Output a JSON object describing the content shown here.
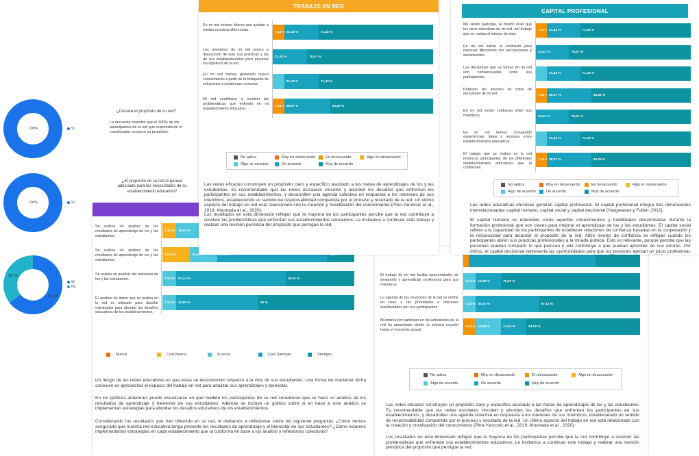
{
  "colors": {
    "trabajo_header": "#f7a823",
    "capital_header": "#17a2b8",
    "purple_header": "#7b3fd0",
    "no_aplica": "#555555",
    "muy_desacuerdo": "#f26d12",
    "en_desacuerdo": "#f59300",
    "algo_desacuerdo": "#f7b21b",
    "algo_acuerdo": "#4fc8dd",
    "de_acuerdo": "#1aa3bf",
    "muy_acuerdo": "#0e93a2",
    "donut_blue": "#1a73e8",
    "donut_light": "#22b2c9"
  },
  "legend_agreement": {
    "no_aplica": "No aplica",
    "muy_desacuerdo": "Muy en desacuerdo",
    "en_desacuerdo": "En desacuerdo",
    "algo_desacuerdo": "Algo en desacuerdo",
    "algo_acuerdo": "Algo de acuerdo",
    "de_acuerdo": "De acuerdo",
    "muy_acuerdo": "Muy de acuerdo"
  },
  "legend_frequency": {
    "nunca": "Nunca",
    "casi_nunca": "Casi Nunca",
    "a_veces": "A veces",
    "casi_siempre": "Casi Siempre",
    "siempre": "Siempre"
  },
  "left_page": {
    "q1": {
      "question": "¿Conoce el propósito de su red?",
      "text": "La encuesta muestra que el 100% de los participantes de la red que respondieron el cuestionario conocen su propósito.",
      "donut_label": "100%",
      "legend": "Sí"
    },
    "q2": {
      "question": "¿El propósito de su red le parece adecuado para las necesidades de su establecimiento educativo?",
      "donut_label": "100%",
      "legend": "Sí"
    },
    "q3": {
      "label_a": "35,7%",
      "label_b": "64,3%",
      "legend_si": "Sí",
      "legend_no": "No"
    }
  },
  "trabajo_en_red": {
    "title": "TRABAJO EN RED",
    "rows": [
      {
        "label": "En mi red existen líderes que ayudan a mediar nuestras diferencias.",
        "segs": [
          [
            "ed",
            7.14,
            "7,14 %"
          ],
          [
            "da",
            21.43,
            "21,43 %"
          ],
          [
            "ma",
            71.43,
            "71,43 %"
          ]
        ]
      },
      {
        "label": "Los miembros de mi red ponen a disposición de esta sus prácticas y las de sus establecimientos para alcanzar los objetivos de la red.",
        "segs": [
          [
            "da",
            21.43,
            "21,43 %"
          ],
          [
            "ma",
            78.57,
            "78,57 %"
          ]
        ]
      },
      {
        "label": "En mi red hemos generado nuevo conocimiento a partir de la búsqueda de soluciones a problemas comunes.",
        "segs": [
          [
            "aa",
            7.14,
            ""
          ],
          [
            "da",
            21.43,
            "21,43 %"
          ],
          [
            "ma",
            71.43,
            "71,43 %"
          ]
        ]
      },
      {
        "label": "Mi red contribuye a resolver las problemáticas que enfrento en mi establecimiento educativo.",
        "segs": [
          [
            "ed",
            7.14,
            "7,14 %"
          ],
          [
            "da",
            28.57,
            "28,57 %"
          ],
          [
            "ma",
            64.29,
            "64,29 %"
          ]
        ]
      }
    ],
    "para1": "Las redes eficaces construyen un propósito claro y específico asociado a las metas de aprendizajes de los y las estudiantes. Es recomendable que las redes escolares vinculen y aborden los desafíos que enfrentan los participantes en sus establecimientos, y desarrollen una agenda colectiva en respuesta a los intereses de sus miembros, estableciendo un sentido de responsabilidad compartida por el proceso y resultado de la red. Un último aspecto del trabajo en red está relacionado con la creación y movilización del conocimiento (Pino-Yancovic et al., 2019; Ahumada et al., 2020).",
    "para2": "Los resultados en esta dimensión reflejan que la mayoría de los participantes percibe que la red contribuye a resolver las problemáticas que enfrentan sus establecimientos educativos. Le invitamos a continuar este trabajo y realizar una revisión periódica del propósito que persigue la red."
  },
  "capital_profesional": {
    "title": "CAPITAL PROFESIONAL",
    "rows": [
      {
        "label": "Me siento partícipe, al mismo nivel que los otros miembros de mi red, del trabajo que se realiza al interior de ésta.",
        "segs": [
          [
            "ed",
            7.14,
            "7,14 %"
          ],
          [
            "da",
            21.43,
            "21,43 %"
          ],
          [
            "ma",
            71.43,
            "71,43 %"
          ]
        ]
      },
      {
        "label": "En mi red siento la confianza para expresar libremente mis percepciones y desacuerdos.",
        "segs": [
          [
            "da",
            21.43,
            "21,43 %"
          ],
          [
            "ma",
            78.57,
            "78,57 %"
          ]
        ]
      },
      {
        "label": "Las decisiones que se toman en mi red son consensuadas entre sus participantes.",
        "segs": [
          [
            "aa",
            7.14,
            ""
          ],
          [
            "da",
            21.43,
            "21,43 %"
          ],
          [
            "ma",
            71.43,
            "71,43 %"
          ]
        ]
      },
      {
        "label": "Participo del proceso de toma de decisiones de mi red.",
        "segs": [
          [
            "ed",
            7.14,
            "7,14 %"
          ],
          [
            "da",
            28.57,
            "28,57 %"
          ],
          [
            "ma",
            64.29,
            "64,29 %"
          ]
        ]
      },
      {
        "label": "En mi red existe confianza entre sus miembros.",
        "segs": [
          [
            "da",
            21.43,
            "21,43 %"
          ],
          [
            "ma",
            78.57,
            "78,57 %"
          ]
        ]
      },
      {
        "label": "En mi red hemos compartido experiencias, ideas o recursos entre establecimientos educativos.",
        "segs": [
          [
            "aa",
            7.14,
            ""
          ],
          [
            "da",
            21.43,
            "21,43 %"
          ],
          [
            "ma",
            71.43,
            "71,43 %"
          ]
        ]
      },
      {
        "label": "El trabajo que se realiza en la red involucra participantes de los diferentes establecimientos educativos que la conforman.",
        "segs": [
          [
            "ed",
            7.14,
            "7,14 %"
          ],
          [
            "da",
            28.57,
            "28,57 %"
          ],
          [
            "ma",
            64.29,
            "64,29 %"
          ]
        ]
      }
    ],
    "para1": "Las redes educativas efectivas generan capital profesional. El capital profesional integra tres dimensiones interrelacionadas: capital humano, capital social y capital decisional (Hargreaves y Fullan, 2012).",
    "para2": "El capital humano es entendido como aquellos conocimientos y habilidades desarrolladas durante la formación profesional que son claves para mejorar el aprendizaje de los y las estudiantes. El capital social refiere a la capacidad de los participantes de establecer relaciones de confianza basadas en la cooperación y la reciprocidad para alcanzar el propósito de la red. Altos niveles de confianza se reflejan cuando los participantes abren sus prácticas profesionales a la mirada pública. Esto es relevante, porque permite que las personas puedan compartir lo que piensan y ello contribuye a que puedan aprender de sus errores. Por último, el capital decisional representa las oportunidades para que los docentes ejerzan un juicio profesional, tengan agencia y se les confíe como profesionales en su propia área (Pino-Yancovic et al., 2019)."
  },
  "datos": {
    "rows": [
      {
        "label": "Se realiza un análisis de los resultados de aprendizaje de los y las estudiantes.",
        "segs": [
          [
            "casin",
            7.14,
            "7,14 %"
          ],
          [
            "aveces",
            28.57,
            "28,57 %"
          ]
        ]
      },
      {
        "label": "Se realiza un análisis de los resultados de aprendizaje de los y las estudiantes.",
        "segs": [
          [
            "casin",
            14.29,
            "14,29 %"
          ],
          [
            "aveces",
            14.29,
            "14,29 %"
          ],
          [
            "casis",
            57.14,
            "57,14 %"
          ],
          [
            "siempre",
            14.29,
            "14,29 %"
          ]
        ]
      },
      {
        "label": "Se realiza un análisis del bienestar de los y las estudiantes.",
        "segs": [
          [
            "aveces",
            7.14,
            "7,14 %"
          ],
          [
            "casis",
            57.14,
            "57,14 %"
          ],
          [
            "siempre",
            35.71,
            "35,71 %"
          ]
        ]
      },
      {
        "label": "El análisis de datos que se realiza en la red es utilizado para diseñar estrategias para abordar los desafíos educativos de los establecimientos.",
        "segs": [
          [
            "aveces",
            7.14,
            "7,14 %"
          ],
          [
            "casis",
            42.86,
            "42,86 %"
          ],
          [
            "siempre",
            50,
            "50 %"
          ]
        ]
      }
    ],
    "para1": "Un riesgo de las redes educativas es que estas se desconecten respecto a la vida de sus estudiantes. Una forma de mantener dicha conexión es aprovechar el espacio del trabajo en red para analizar sus aprendizajes y bienestar.",
    "para2": "En los gráficos anteriores puede visualizarse en qué medida los participantes de su red consideran que se hace un análisis de los resultados de aprendizaje y bienestar de sus estudiantes. Además se incluye un gráfico sobre si en base a este análisis se implementan estrategias para abordar los desafíos educativos de los establecimientos.",
    "para3": "Considerando los resultados que han obtenido en su red, le invitamos a reflexionar sobre las siguiente preguntas ¿Cómo hemos asegurado que nuestra red educativa tenga presente los resultados de aprendizaje y el bienestar de sus estudiantes? ¿Cómo estamos implementando estrategias en cada establecimiento que la conforma en base a los análisis y reflexiones colectivas?"
  },
  "br_page": {
    "rows": [
      {
        "label": "miembros.",
        "segs": [
          [
            "ed",
            3.0,
            ""
          ],
          [
            "da",
            72,
            ""
          ],
          [
            "ma",
            25,
            ""
          ]
        ]
      },
      {
        "label": "El trabajo de mi red facilita oportunidades de desarrollo y aprendizaje profesional para sus miembros.",
        "segs": [
          [
            "aa",
            7.14,
            "7,14 %"
          ],
          [
            "da",
            14.29,
            "14,29 %"
          ],
          [
            "ma",
            78.57,
            "78,57 %"
          ]
        ]
      },
      {
        "label": "La agenda de las reuniones de la red se define en base a las prioridades e intereses manifestados por sus participantes.",
        "segs": [
          [
            "aa",
            7.14,
            "7,14 %"
          ],
          [
            "da",
            35.71,
            "35,71 %"
          ],
          [
            "ma",
            57.14,
            "57,14 %"
          ]
        ]
      },
      {
        "label": "Mi interés por participar en las actividades de la red ha aumentado desde la primera reunión hasta el momento actual.",
        "segs": [
          [
            "ed",
            7.14,
            "7,14 %"
          ],
          [
            "aa",
            14.29,
            "14,29 %"
          ],
          [
            "da",
            14.29,
            "14,29 %"
          ],
          [
            "ma",
            64.29,
            "64,29 %"
          ]
        ]
      }
    ],
    "para1": "Las redes eficaces construyen un propósito claro y específico asociado a las metas de aprendizajes de los y las estudiantes. Es recomendable que las redes escolares vinculen y aborden los desafíos que enfrentan los participantes en sus establecimientos, y desarrollen una agenda colectiva en respuesta a los intereses de sus miembros, estableciendo un sentido de responsabilidad compartida por el proceso y resultado de la red. Un último aspecto del trabajo en red está relacionado con la creación y movilización del conocimiento (Pino-Yancovic et al., 2019; Ahumada et al., 2020).",
    "para2": "Los resultados en esta dimensión reflejan que la mayoría de los participantes percibe que la red contribuye a resolver las problemáticas que enfrentan sus establecimientos educativos. Le invitamos a continuar este trabajo y realizar una revisión periódica del propósito que persigue la red."
  }
}
